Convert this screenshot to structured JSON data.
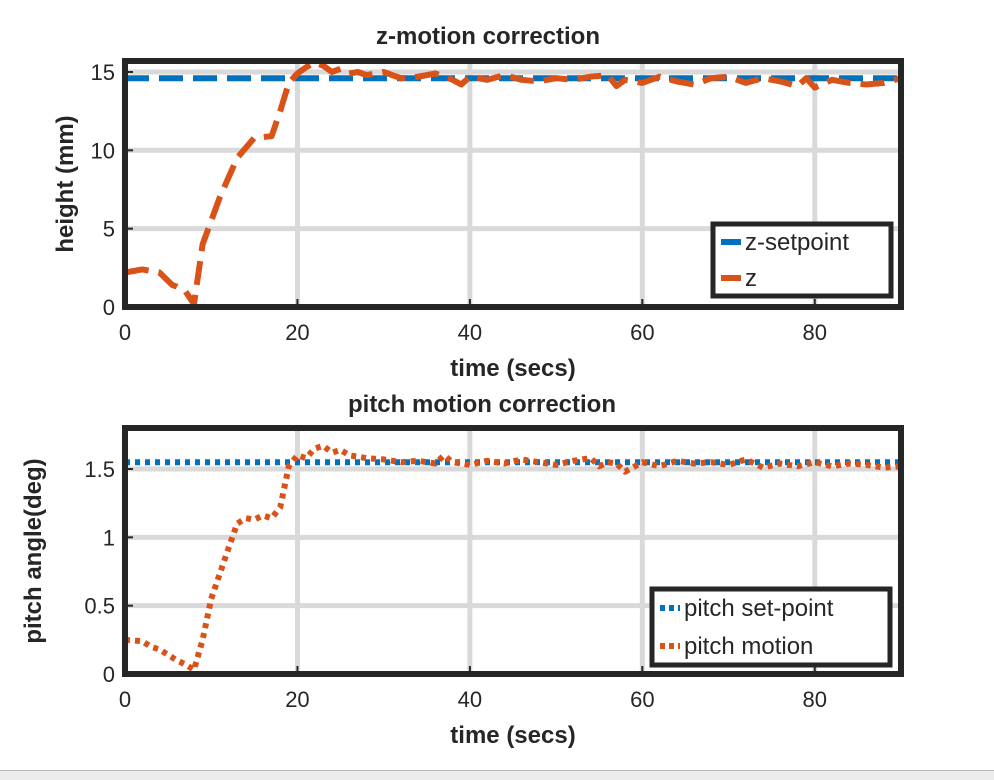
{
  "colors": {
    "setpoint": "#0072BD",
    "measured": "#D95319",
    "grid": "#d9d9d9",
    "frame": "#262626"
  },
  "chart_data": [
    {
      "type": "line",
      "title": "z-motion correction",
      "xlabel": "time (secs)",
      "ylabel": "height (mm)",
      "xlim": [
        0,
        90
      ],
      "ylim": [
        0,
        15.7
      ],
      "xticks": [
        0,
        20,
        40,
        60,
        80
      ],
      "yticks": [
        0,
        5,
        10,
        15
      ],
      "grid": true,
      "legend_position": "bottom-right",
      "series": [
        {
          "name": "z-setpoint",
          "style": "dashed",
          "color": "#0072BD",
          "x": [
            0,
            90
          ],
          "y": [
            14.6,
            14.6
          ]
        },
        {
          "name": "z",
          "style": "dashed",
          "color": "#D95319",
          "x": [
            0,
            2,
            4,
            5.5,
            6,
            7,
            8,
            9,
            11,
            13,
            15,
            17,
            18,
            19,
            20,
            21,
            22,
            23,
            24,
            25,
            26,
            27,
            28,
            30,
            32,
            34,
            36,
            38,
            39,
            40,
            42,
            44,
            46,
            48,
            50,
            52,
            54,
            56,
            57,
            58,
            60,
            62,
            64,
            66,
            68,
            70,
            72,
            74,
            76,
            78,
            79,
            80,
            82,
            84,
            86,
            88,
            90
          ],
          "y": [
            2.2,
            2.4,
            2.2,
            1.4,
            1.3,
            1.0,
            0.2,
            4.0,
            7.0,
            9.5,
            10.8,
            10.9,
            12.5,
            14.3,
            14.9,
            15.3,
            15.6,
            15.4,
            15.0,
            15.2,
            14.9,
            15.0,
            14.8,
            15.0,
            14.6,
            14.7,
            14.9,
            14.5,
            14.2,
            14.7,
            14.5,
            14.8,
            14.5,
            14.4,
            14.6,
            14.5,
            14.7,
            14.8,
            14.1,
            14.5,
            14.3,
            14.7,
            14.4,
            14.2,
            14.6,
            14.7,
            14.3,
            14.6,
            14.4,
            14.1,
            14.6,
            14.0,
            14.5,
            14.3,
            14.2,
            14.3,
            14.6
          ]
        }
      ]
    },
    {
      "type": "line",
      "title": "pitch motion correction",
      "xlabel": "time (secs)",
      "ylabel": "pitch angle(deg)",
      "xlim": [
        0,
        90
      ],
      "ylim": [
        0,
        1.8
      ],
      "xticks": [
        0,
        20,
        40,
        60,
        80
      ],
      "yticks": [
        0,
        0.5,
        1,
        1.5
      ],
      "grid": true,
      "legend_position": "bottom-right",
      "series": [
        {
          "name": "pitch set-point",
          "style": "dotted",
          "color": "#0072BD",
          "x": [
            0,
            90
          ],
          "y": [
            1.55,
            1.55
          ]
        },
        {
          "name": "pitch motion",
          "style": "dotted",
          "color": "#D95319",
          "x": [
            0,
            2,
            3,
            4,
            6,
            7,
            8,
            9,
            10,
            12,
            13,
            14,
            15,
            16,
            17,
            18,
            19,
            20,
            21,
            22,
            23,
            24,
            25,
            26,
            28,
            30,
            32,
            34,
            36,
            37,
            38,
            40,
            42,
            44,
            46,
            48,
            50,
            52,
            54,
            55,
            56,
            57,
            58,
            60,
            62,
            64,
            66,
            68,
            70,
            72,
            74,
            76,
            78,
            80,
            82,
            84,
            86,
            88,
            90
          ],
          "y": [
            0.25,
            0.24,
            0.2,
            0.18,
            0.1,
            0.07,
            0.03,
            0.25,
            0.55,
            0.92,
            1.1,
            1.14,
            1.13,
            1.16,
            1.14,
            1.22,
            1.52,
            1.6,
            1.58,
            1.65,
            1.67,
            1.62,
            1.64,
            1.6,
            1.58,
            1.57,
            1.55,
            1.56,
            1.54,
            1.6,
            1.55,
            1.53,
            1.56,
            1.54,
            1.57,
            1.55,
            1.53,
            1.56,
            1.58,
            1.52,
            1.55,
            1.54,
            1.48,
            1.55,
            1.52,
            1.56,
            1.54,
            1.55,
            1.53,
            1.57,
            1.51,
            1.54,
            1.52,
            1.55,
            1.52,
            1.54,
            1.53,
            1.51,
            1.52
          ]
        }
      ]
    }
  ]
}
